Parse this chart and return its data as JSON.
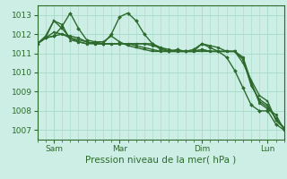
{
  "background_color": "#cceee4",
  "grid_color": "#aaddcc",
  "line_color": "#2d6a2d",
  "xlabel_text": "Pression niveau de la mer( hPa )",
  "ylim": [
    1006.5,
    1013.5
  ],
  "yticks": [
    1007,
    1008,
    1009,
    1010,
    1011,
    1012,
    1013
  ],
  "xtick_labels": [
    "Sam",
    "Mar",
    "Dim",
    "Lun"
  ],
  "xtick_positions": [
    12,
    60,
    120,
    168
  ],
  "total_hours": 180,
  "series": [
    {
      "x": [
        0,
        6,
        12,
        18,
        24,
        30,
        36,
        42,
        48,
        54,
        60,
        66,
        72,
        78,
        84,
        90,
        96,
        102,
        108,
        114,
        120,
        126,
        132,
        138,
        144,
        150,
        156,
        162,
        168,
        174,
        180
      ],
      "y": [
        1011.5,
        1011.8,
        1011.9,
        1012.4,
        1013.1,
        1012.3,
        1011.7,
        1011.6,
        1011.5,
        1012.0,
        1012.9,
        1013.1,
        1012.7,
        1012.0,
        1011.5,
        1011.2,
        1011.1,
        1011.2,
        1011.1,
        1011.2,
        1011.5,
        1011.3,
        1011.1,
        1010.8,
        1010.1,
        1009.2,
        1008.3,
        1008.0,
        1008.0,
        1007.3,
        1007.0
      ],
      "marker": "D",
      "markersize": 2.0,
      "linewidth": 1.0
    },
    {
      "x": [
        0,
        6,
        12,
        18,
        24,
        30,
        36,
        42,
        48,
        54,
        60,
        66,
        72,
        78,
        84,
        90,
        96,
        102,
        108,
        114,
        120,
        126,
        132,
        138,
        144,
        150,
        156,
        162,
        168,
        174,
        180
      ],
      "y": [
        1011.5,
        1011.8,
        1012.7,
        1012.3,
        1011.8,
        1011.6,
        1011.5,
        1011.6,
        1011.6,
        1011.9,
        1011.6,
        1011.4,
        1011.3,
        1011.2,
        1011.1,
        1011.1,
        1011.1,
        1011.1,
        1011.1,
        1011.1,
        1011.1,
        1011.1,
        1011.1,
        1011.1,
        1011.1,
        1010.5,
        1009.6,
        1008.8,
        1008.5,
        1007.5,
        1007.1
      ],
      "marker": "s",
      "markersize": 2.0,
      "linewidth": 1.0
    },
    {
      "x": [
        0,
        6,
        12,
        18,
        24,
        30,
        36,
        42,
        48,
        54,
        60,
        66,
        72,
        78,
        84,
        90,
        96,
        102,
        108,
        114,
        120,
        126,
        132,
        138,
        144,
        150,
        156,
        162,
        168,
        174,
        180
      ],
      "y": [
        1011.5,
        1011.9,
        1012.7,
        1012.5,
        1011.7,
        1011.6,
        1011.5,
        1011.5,
        1011.5,
        1011.5,
        1011.5,
        1011.5,
        1011.4,
        1011.3,
        1011.2,
        1011.1,
        1011.1,
        1011.1,
        1011.1,
        1011.1,
        1011.2,
        1011.1,
        1011.1,
        1011.1,
        1011.1,
        1010.7,
        1009.4,
        1008.5,
        1008.2,
        1007.6,
        1007.1
      ],
      "marker": "^",
      "markersize": 2.0,
      "linewidth": 1.0
    },
    {
      "x": [
        0,
        6,
        12,
        18,
        24,
        30,
        36,
        42,
        48,
        54,
        60,
        66,
        72,
        78,
        84,
        90,
        96,
        102,
        108,
        114,
        120,
        126,
        132,
        138,
        144,
        150,
        156,
        162,
        168,
        174,
        180
      ],
      "y": [
        1011.5,
        1011.8,
        1011.9,
        1012.0,
        1011.9,
        1011.8,
        1011.6,
        1011.5,
        1011.5,
        1011.5,
        1011.5,
        1011.5,
        1011.5,
        1011.5,
        1011.4,
        1011.3,
        1011.2,
        1011.1,
        1011.1,
        1011.1,
        1011.5,
        1011.4,
        1011.3,
        1011.1,
        1011.1,
        1010.8,
        1009.5,
        1008.4,
        1008.1,
        1007.8,
        1007.0
      ],
      "marker": "o",
      "markersize": 2.0,
      "linewidth": 1.0
    },
    {
      "x": [
        0,
        6,
        12,
        18,
        24,
        30,
        36,
        42,
        48,
        54,
        60,
        66,
        72,
        78,
        84,
        90,
        96,
        102,
        108,
        114,
        120,
        126,
        132,
        138,
        144,
        150,
        156,
        162,
        168,
        174,
        180
      ],
      "y": [
        1011.5,
        1011.8,
        1012.1,
        1012.0,
        1011.8,
        1011.7,
        1011.6,
        1011.5,
        1011.5,
        1011.5,
        1011.5,
        1011.5,
        1011.5,
        1011.5,
        1011.5,
        1011.3,
        1011.1,
        1011.1,
        1011.1,
        1011.1,
        1011.2,
        1011.1,
        1011.1,
        1011.1,
        1011.1,
        1010.7,
        1009.3,
        1008.6,
        1008.3,
        1007.6,
        1007.1
      ],
      "marker": "v",
      "markersize": 2.0,
      "linewidth": 1.0
    }
  ]
}
